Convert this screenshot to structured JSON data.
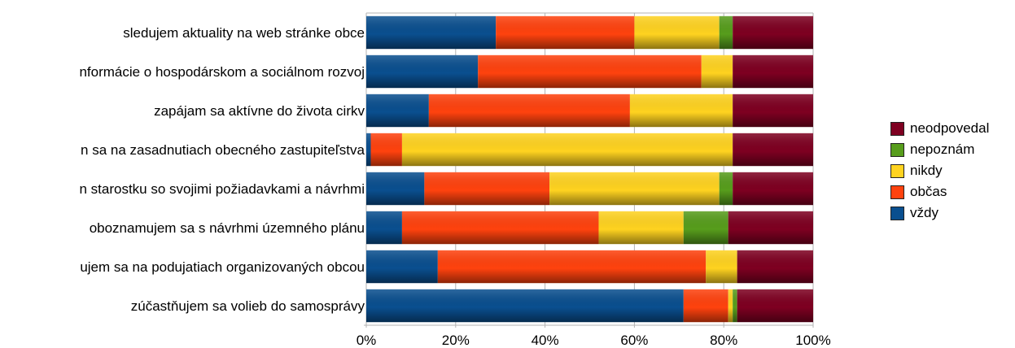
{
  "chart_data": {
    "type": "bar",
    "orientation": "horizontal",
    "stacked": true,
    "percent_stacked": true,
    "categories": [
      "sledujem aktuality na web stránke obce",
      "nformácie o hospodárskom a sociálnom rozvoj",
      "zapájam sa aktívne do života cirkv",
      "n sa na zasadnutiach obecného zastupiteľstva",
      "n starostku so svojimi požiadavkami a návrhmi",
      "oboznamujem sa s návrhmi územného plánu",
      "ujem sa na podujatiach organizovaných obcou",
      "zúčastňujem sa volieb do samosprávy"
    ],
    "series": [
      {
        "name": "vždy",
        "color": "#0a4f8f",
        "values": [
          29,
          25,
          14,
          1,
          13,
          8,
          16,
          71
        ]
      },
      {
        "name": "občas",
        "color": "#ff420e",
        "values": [
          31,
          50,
          45,
          7,
          28,
          44,
          60,
          10
        ]
      },
      {
        "name": "nikdy",
        "color": "#ffd320",
        "values": [
          19,
          7,
          23,
          74,
          38,
          19,
          7,
          1
        ]
      },
      {
        "name": "nepoznám",
        "color": "#579d1c",
        "values": [
          3,
          0,
          0,
          0,
          3,
          10,
          0,
          1
        ]
      },
      {
        "name": "neodpovedal",
        "color": "#7e0021",
        "values": [
          18,
          18,
          18,
          18,
          18,
          19,
          17,
          17
        ]
      }
    ],
    "xlim": [
      0,
      100
    ],
    "x_ticks": [
      "0%",
      "20%",
      "40%",
      "60%",
      "80%",
      "100%"
    ],
    "grid": true,
    "legend_position": "right",
    "legend_order": [
      "neodpovedal",
      "nepoznám",
      "nikdy",
      "občas",
      "vždy"
    ]
  }
}
